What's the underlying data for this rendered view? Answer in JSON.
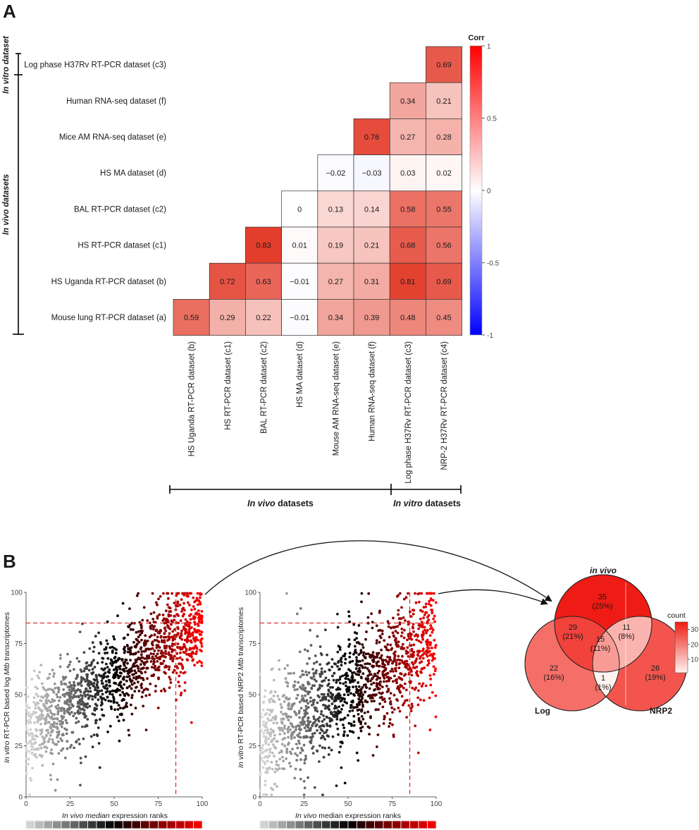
{
  "panel_a_label": "A",
  "panel_b_label": "B",
  "chart_data": [
    {
      "type": "heatmap",
      "id": "correlation",
      "legend_title": "Corr",
      "colorbar_ticks": [
        "1",
        "0.5",
        "0",
        "-0.5",
        "-1"
      ],
      "row_labels": [
        "Log phase H37Rv RT-PCR dataset (c3)",
        "Human RNA-seq dataset (f)",
        "Mice AM RNA-seq dataset (e)",
        "HS MA dataset (d)",
        "BAL RT-PCR dataset (c2)",
        "HS RT-PCR dataset (c1)",
        "HS Uganda RT-PCR dataset (b)",
        "Mouse lung RT-PCR dataset (a)"
      ],
      "col_labels": [
        "HS Uganda RT-PCR dataset (b)",
        "HS RT-PCR dataset (c1)",
        "BAL RT-PCR dataset (c2)",
        "HS MA dataset (d)",
        "Mouse AM RNA-seq dataset (e)",
        "Human RNA-seq dataset (f)",
        "Log phase H37Rv RT-PCR dataset (c3)",
        "NRP-2 H37Rv RT-PCR dataset (c4)"
      ],
      "values": [
        [
          null,
          null,
          null,
          null,
          null,
          null,
          null,
          0.69
        ],
        [
          null,
          null,
          null,
          null,
          null,
          null,
          0.34,
          0.21
        ],
        [
          null,
          null,
          null,
          null,
          null,
          0.76,
          0.27,
          0.28
        ],
        [
          null,
          null,
          null,
          null,
          -0.02,
          -0.03,
          0.03,
          0.02
        ],
        [
          null,
          null,
          null,
          0,
          0.13,
          0.14,
          0.58,
          0.55
        ],
        [
          null,
          null,
          0.83,
          0.01,
          0.19,
          0.21,
          0.68,
          0.56
        ],
        [
          null,
          0.72,
          0.63,
          -0.01,
          0.27,
          0.31,
          0.81,
          0.69
        ],
        [
          0.59,
          0.29,
          0.22,
          -0.01,
          0.34,
          0.39,
          0.48,
          0.45
        ]
      ],
      "value_labels": [
        [
          "",
          "",
          "",
          "",
          "",
          "",
          "",
          "0.69"
        ],
        [
          "",
          "",
          "",
          "",
          "",
          "",
          "0.34",
          "0.21"
        ],
        [
          "",
          "",
          "",
          "",
          "",
          "0.76",
          "0.27",
          "0.28"
        ],
        [
          "",
          "",
          "",
          "",
          "−0.02",
          "−0.03",
          "0.03",
          "0.02"
        ],
        [
          "",
          "",
          "",
          "0",
          "0.13",
          "0.14",
          "0.58",
          "0.55"
        ],
        [
          "",
          "",
          "0.83",
          "0.01",
          "0.19",
          "0.21",
          "0.68",
          "0.56"
        ],
        [
          "",
          "0.72",
          "0.63",
          "−0.01",
          "0.27",
          "0.31",
          "0.81",
          "0.69"
        ],
        [
          "0.59",
          "0.29",
          "0.22",
          "−0.01",
          "0.34",
          "0.39",
          "0.48",
          "0.45"
        ]
      ],
      "row_group_vitro": "In vitro dataset",
      "row_group_vivo": "In vivo datasets",
      "col_group_vivo_italic": "In vivo",
      "col_group_vivo_rest": " datasets",
      "col_group_vitro_italic": "In vitro",
      "col_group_vitro_rest": " datasets",
      "color_low": "#0000ff",
      "color_mid": "#ffffff",
      "color_high": "#ff0000"
    },
    {
      "type": "scatter",
      "id": "scatter_log",
      "xlim": [
        0,
        100
      ],
      "ylim": [
        0,
        100
      ],
      "xticks": [
        "0",
        "25",
        "50",
        "75",
        "100"
      ],
      "yticks": [
        "0",
        "25",
        "50",
        "75",
        "100"
      ],
      "xlabel_italic": "In vivo median",
      "xlabel_rest": " expression ranks",
      "ylabel_italic": "In vitro",
      "ylabel_mid": " RT-PCR based log ",
      "ylabel_italic2": "Mtb",
      "ylabel_rest": " transcriptomes",
      "x_threshold": 85,
      "y_threshold": 85,
      "n_points": 1400,
      "trend_slope": 0.55,
      "trend_intercept": 31,
      "spread": 11,
      "note": "points color-coded by x rank: light grey -> black -> red"
    },
    {
      "type": "scatter",
      "id": "scatter_nrp2",
      "xlim": [
        0,
        100
      ],
      "ylim": [
        0,
        100
      ],
      "xticks": [
        "0",
        "25",
        "50",
        "75",
        "100"
      ],
      "yticks": [
        "0",
        "25",
        "50",
        "75",
        "100"
      ],
      "xlabel_italic": "In vivo",
      "xlabel_rest": " median expression ranks",
      "ylabel_italic": "In vitro",
      "ylabel_mid": " RT-PCR based NRP2 ",
      "ylabel_italic2": "Mtb",
      "ylabel_rest": " transcriptomes",
      "x_threshold": 85,
      "y_threshold": 85,
      "n_points": 1400,
      "trend_slope": 0.5,
      "trend_intercept": 27,
      "spread": 14
    },
    {
      "type": "venn",
      "id": "venn",
      "set_labels": {
        "top": "in vivo",
        "left": "Log",
        "right": "NRP2"
      },
      "regions": [
        {
          "region": "vivo_only",
          "count": 35,
          "pct": "(25%)"
        },
        {
          "region": "vivo_log",
          "count": 29,
          "pct": "(21%)"
        },
        {
          "region": "vivo_nrp2",
          "count": 11,
          "pct": "(8%)"
        },
        {
          "region": "all_three",
          "count": 15,
          "pct": "(11%)"
        },
        {
          "region": "log_only",
          "count": 22,
          "pct": "(16%)"
        },
        {
          "region": "nrp2_only",
          "count": 26,
          "pct": "(19%)"
        },
        {
          "region": "log_nrp2",
          "count": 1,
          "pct": "(1%)"
        }
      ],
      "legend_title": "count",
      "legend_ticks": [
        "30",
        "20",
        "10"
      ],
      "count_min": 1,
      "count_max": 35
    }
  ]
}
